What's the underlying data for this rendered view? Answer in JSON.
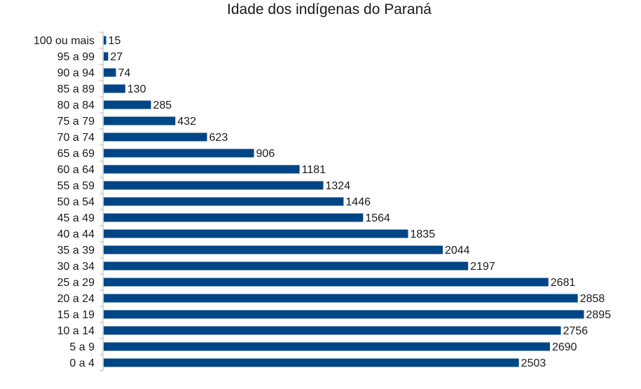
{
  "chart_data": {
    "type": "bar",
    "orientation": "horizontal",
    "title": "Idade dos indígenas do Paraná",
    "xlabel": "",
    "ylabel": "",
    "grid": false,
    "legend": "none",
    "bar_color": "#004586",
    "xlim": [
      0,
      3000
    ],
    "categories": [
      "100 ou mais",
      "95 a 99",
      "90 a 94",
      "85 a 89",
      "80 a 84",
      "75 a 79",
      "70 a 74",
      "65 a 69",
      "60 a 64",
      "55 a 59",
      "50 a 54",
      "45 a 49",
      "40 a 44",
      "35 a 39",
      "30 a 34",
      "25 a 29",
      "20 a 24",
      "15 a 19",
      "10 a 14",
      "5 a 9",
      "0 a 4"
    ],
    "values": [
      15,
      27,
      74,
      130,
      285,
      432,
      623,
      906,
      1181,
      1324,
      1446,
      1564,
      1835,
      2044,
      2197,
      2681,
      2858,
      2895,
      2756,
      2690,
      2503
    ],
    "labels": [
      "15",
      "27",
      "74",
      "130",
      "285",
      "432",
      "623",
      "906",
      "1181",
      "1324",
      "1446",
      "1564",
      "1835",
      "2044",
      "2197",
      "2681",
      "2858",
      "2895",
      "2756",
      "2690",
      "2503"
    ]
  }
}
